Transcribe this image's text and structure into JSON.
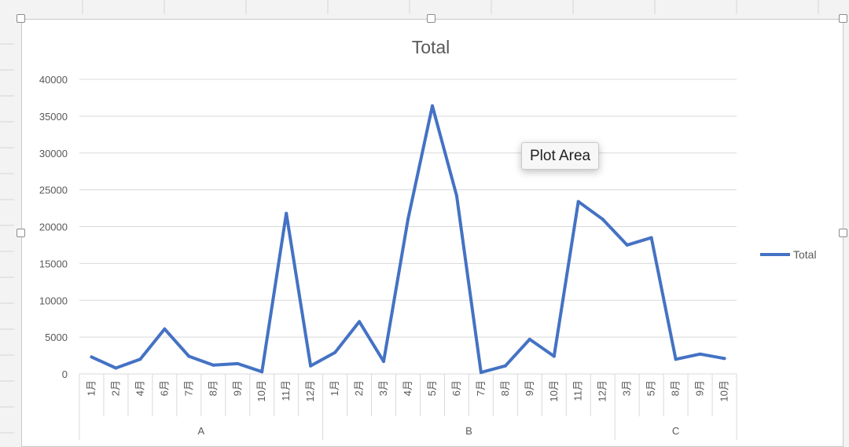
{
  "chart_data": {
    "type": "line",
    "title": "Total",
    "ylim": [
      0,
      40000
    ],
    "yticks": [
      0,
      5000,
      10000,
      15000,
      20000,
      25000,
      30000,
      35000,
      40000
    ],
    "grid": true,
    "legend_position": "right",
    "groups": [
      {
        "name": "A",
        "categories": [
          "1月",
          "2月",
          "4月",
          "6月",
          "7月",
          "8月",
          "9月",
          "10月",
          "11月",
          "12月"
        ]
      },
      {
        "name": "B",
        "categories": [
          "1月",
          "2月",
          "3月",
          "4月",
          "5月",
          "6月",
          "7月",
          "8月",
          "9月",
          "10月",
          "11月",
          "12月"
        ]
      },
      {
        "name": "C",
        "categories": [
          "3月",
          "5月",
          "8月",
          "9月",
          "10月"
        ]
      }
    ],
    "series": [
      {
        "name": "Total",
        "color": "#4472C4",
        "values": [
          2300,
          800,
          2000,
          6100,
          2400,
          1200,
          1400,
          300,
          21800,
          1100,
          2900,
          7100,
          1700,
          21000,
          36400,
          24200,
          200,
          1100,
          4700,
          2400,
          23400,
          21000,
          17500,
          18500,
          2000,
          2700,
          2100
        ]
      }
    ]
  },
  "tooltip": {
    "text": "Plot Area"
  }
}
